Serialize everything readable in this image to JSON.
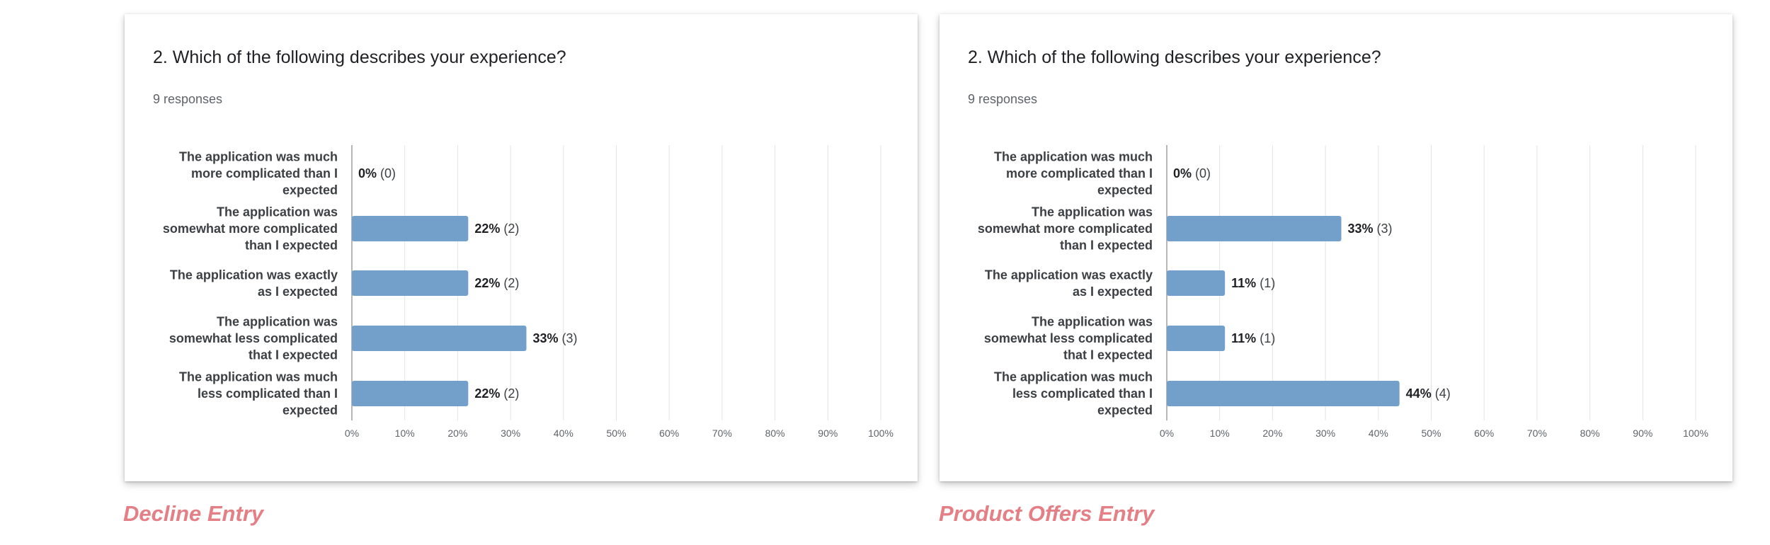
{
  "theme": {
    "bar_color": "#73a0cb",
    "grid_color": "#e3e3e3",
    "axis_color": "#9e9e9e",
    "caption_color": "#e57f86"
  },
  "chart_data": [
    {
      "type": "bar",
      "orientation": "horizontal",
      "title": "2. Which of the following describes your experience?",
      "subtitle": "9 responses",
      "categories": [
        [
          "The application was much",
          "more complicated than I",
          "expected"
        ],
        [
          "The application was",
          "somewhat more complicated",
          "than I expected"
        ],
        [
          "The application was exactly",
          "as I expected"
        ],
        [
          "The application was",
          "somewhat less complicated",
          "that I expected"
        ],
        [
          "The application was much",
          "less complicated than I",
          "expected"
        ]
      ],
      "values": [
        0,
        22,
        22,
        33,
        22
      ],
      "counts": [
        0,
        2,
        2,
        3,
        2
      ],
      "value_labels": [
        "0%",
        "22%",
        "22%",
        "33%",
        "22%"
      ],
      "count_labels": [
        "(0)",
        "(2)",
        "(2)",
        "(3)",
        "(2)"
      ],
      "xticks": [
        "0%",
        "10%",
        "20%",
        "30%",
        "40%",
        "50%",
        "60%",
        "70%",
        "80%",
        "90%",
        "100%"
      ],
      "xlim": [
        0,
        100
      ],
      "xunit": "%",
      "grid": true
    },
    {
      "type": "bar",
      "orientation": "horizontal",
      "title": "2. Which of the following describes your experience?",
      "subtitle": "9 responses",
      "categories": [
        [
          "The application was much",
          "more complicated than I",
          "expected"
        ],
        [
          "The application was",
          "somewhat more complicated",
          "than I expected"
        ],
        [
          "The application was exactly",
          "as I expected"
        ],
        [
          "The application was",
          "somewhat less complicated",
          "that I expected"
        ],
        [
          "The application was much",
          "less complicated than I",
          "expected"
        ]
      ],
      "values": [
        0,
        33,
        11,
        11,
        44
      ],
      "counts": [
        0,
        3,
        1,
        1,
        4
      ],
      "value_labels": [
        "0%",
        "33%",
        "11%",
        "11%",
        "44%"
      ],
      "count_labels": [
        "(0)",
        "(3)",
        "(1)",
        "(1)",
        "(4)"
      ],
      "xticks": [
        "0%",
        "10%",
        "20%",
        "30%",
        "40%",
        "50%",
        "60%",
        "70%",
        "80%",
        "90%",
        "100%"
      ],
      "xlim": [
        0,
        100
      ],
      "xunit": "%",
      "grid": true
    }
  ],
  "captions": [
    "Decline Entry",
    "Product Offers Entry"
  ]
}
